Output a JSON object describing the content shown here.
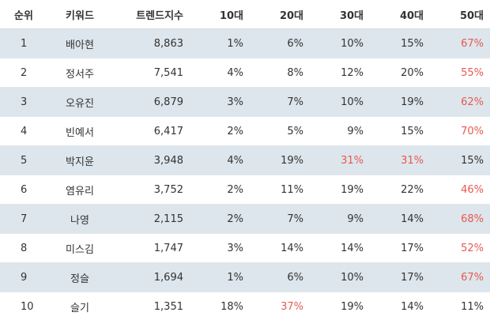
{
  "table": {
    "headers": [
      "순위",
      "키워드",
      "트렌드지수",
      "10대",
      "20대",
      "30대",
      "40대",
      "50대"
    ],
    "highlight_color": "#e8584f",
    "row_shade_color": "#dde6ec",
    "rows": [
      {
        "rank": "1",
        "keyword": "배아현",
        "trend": "8,863",
        "age10": "1%",
        "age20": "6%",
        "age30": "10%",
        "age40": "15%",
        "age50": "67%",
        "hl": [
          "age50"
        ]
      },
      {
        "rank": "2",
        "keyword": "정서주",
        "trend": "7,541",
        "age10": "4%",
        "age20": "8%",
        "age30": "12%",
        "age40": "20%",
        "age50": "55%",
        "hl": [
          "age50"
        ]
      },
      {
        "rank": "3",
        "keyword": "오유진",
        "trend": "6,879",
        "age10": "3%",
        "age20": "7%",
        "age30": "10%",
        "age40": "19%",
        "age50": "62%",
        "hl": [
          "age50"
        ]
      },
      {
        "rank": "4",
        "keyword": "빈예서",
        "trend": "6,417",
        "age10": "2%",
        "age20": "5%",
        "age30": "9%",
        "age40": "15%",
        "age50": "70%",
        "hl": [
          "age50"
        ]
      },
      {
        "rank": "5",
        "keyword": "박지윤",
        "trend": "3,948",
        "age10": "4%",
        "age20": "19%",
        "age30": "31%",
        "age40": "31%",
        "age50": "15%",
        "hl": [
          "age30",
          "age40"
        ]
      },
      {
        "rank": "6",
        "keyword": "염유리",
        "trend": "3,752",
        "age10": "2%",
        "age20": "11%",
        "age30": "19%",
        "age40": "22%",
        "age50": "46%",
        "hl": [
          "age50"
        ]
      },
      {
        "rank": "7",
        "keyword": "나영",
        "trend": "2,115",
        "age10": "2%",
        "age20": "7%",
        "age30": "9%",
        "age40": "14%",
        "age50": "68%",
        "hl": [
          "age50"
        ]
      },
      {
        "rank": "8",
        "keyword": "미스김",
        "trend": "1,747",
        "age10": "3%",
        "age20": "14%",
        "age30": "14%",
        "age40": "17%",
        "age50": "52%",
        "hl": [
          "age50"
        ]
      },
      {
        "rank": "9",
        "keyword": "정슬",
        "trend": "1,694",
        "age10": "1%",
        "age20": "6%",
        "age30": "10%",
        "age40": "17%",
        "age50": "67%",
        "hl": [
          "age50"
        ]
      },
      {
        "rank": "10",
        "keyword": "슬기",
        "trend": "1,351",
        "age10": "18%",
        "age20": "37%",
        "age30": "19%",
        "age40": "14%",
        "age50": "11%",
        "hl": [
          "age20"
        ]
      }
    ]
  }
}
